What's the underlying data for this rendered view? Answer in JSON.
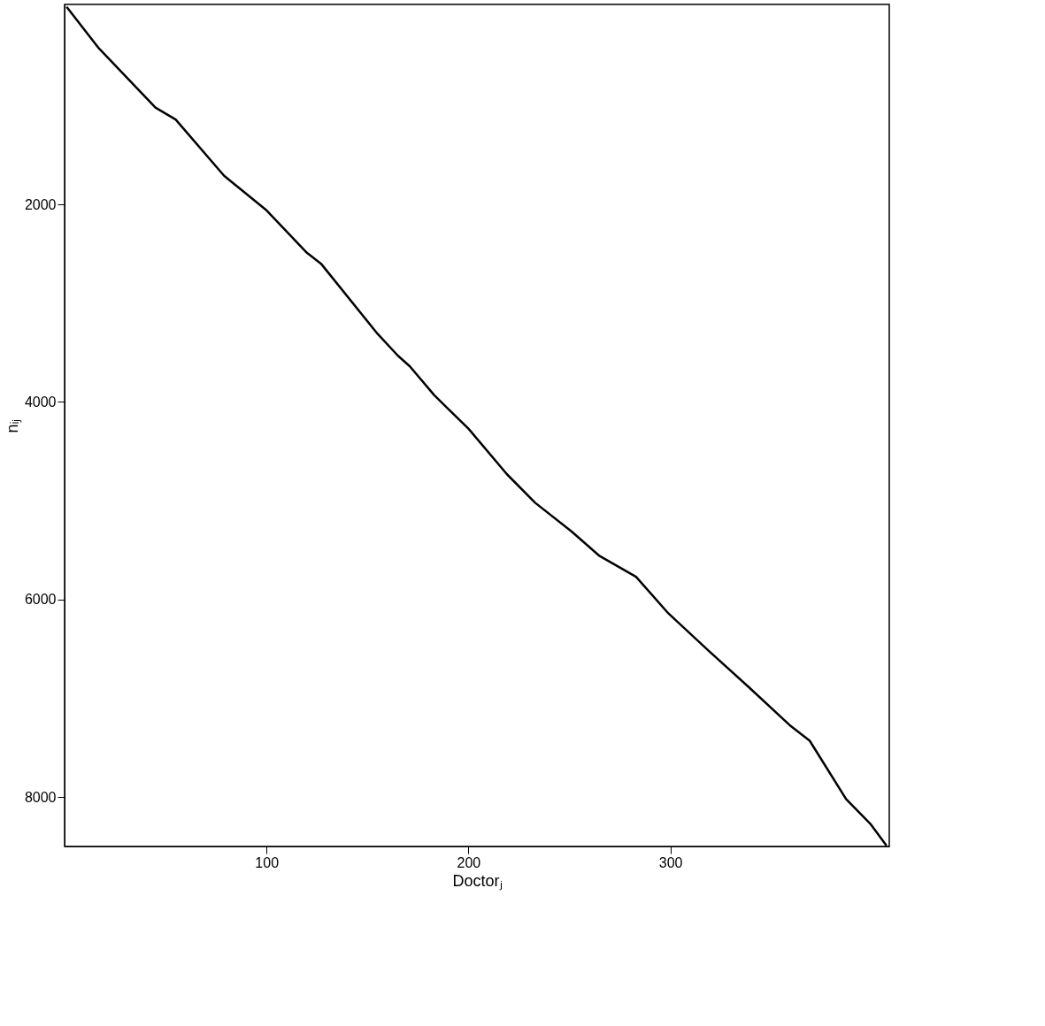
{
  "chart_data": {
    "type": "line",
    "xlabel": "Doctorⱼ",
    "ylabel": "nᵢⱼ",
    "x": [
      1,
      17,
      45,
      55,
      79,
      100,
      120,
      127,
      155,
      165,
      171,
      183,
      200,
      219,
      233,
      251,
      265,
      283,
      299,
      319,
      339,
      359,
      369,
      387,
      399,
      407
    ],
    "series": [
      {
        "color": "#000000",
        "values": [
          0,
          420,
          1020,
          1140,
          1710,
          2060,
          2490,
          2600,
          3310,
          3530,
          3640,
          3930,
          4270,
          4730,
          5020,
          5310,
          5560,
          5770,
          6140,
          6520,
          6890,
          7270,
          7430,
          8020,
          8270,
          8490
        ]
      }
    ],
    "xlim": [
      0,
      408.4
    ],
    "ylim": [
      8500,
      -25
    ],
    "xticks": [
      100,
      200,
      300
    ],
    "yticks": [
      2000,
      4000,
      6000,
      8000
    ],
    "grid": false,
    "line_style": "solid",
    "marker": "none"
  }
}
